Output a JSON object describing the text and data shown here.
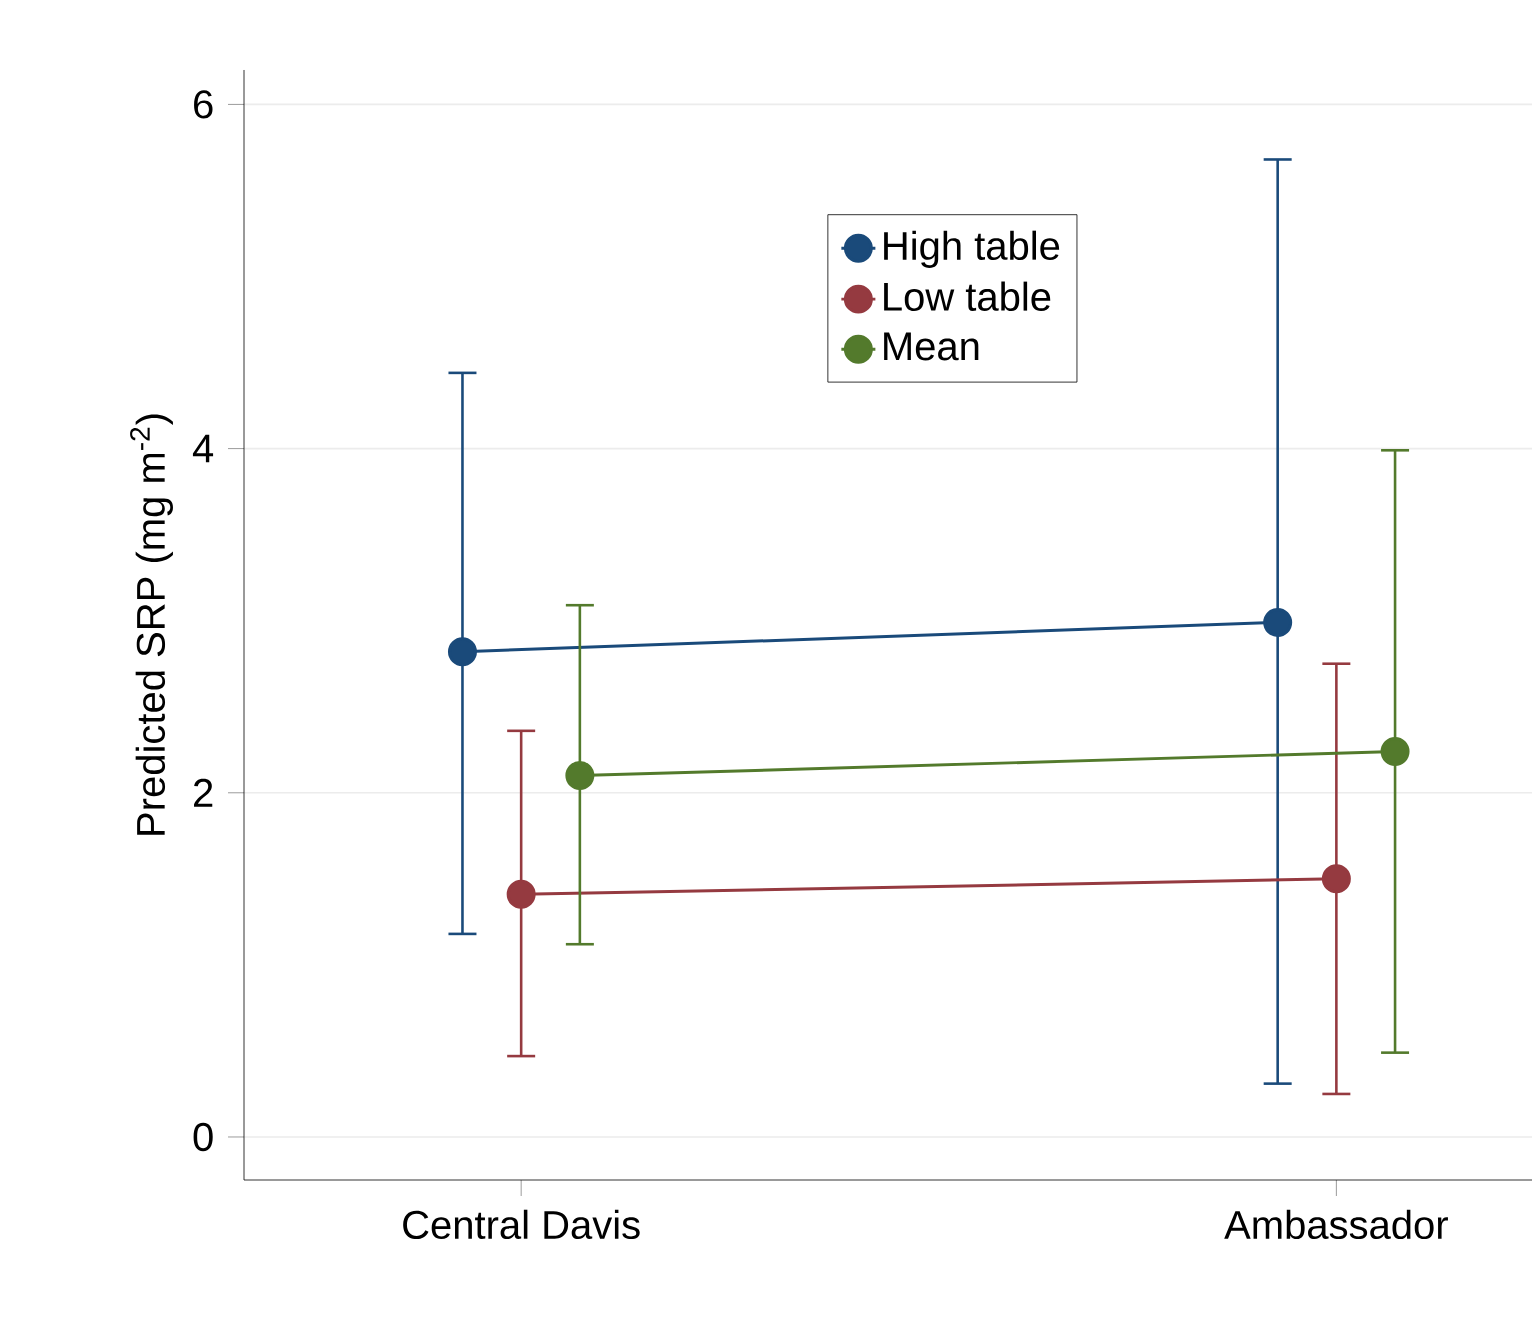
{
  "chart_data": {
    "type": "line",
    "ylabel": "Predicted SRP (mg m$^{-2}$)",
    "categories": [
      "Central Davis",
      "Ambassador"
    ],
    "series": [
      {
        "name": "High table",
        "color": "#1a4a7a",
        "values": [
          2.82,
          2.99
        ],
        "errors": [
          [
            1.18,
            4.44
          ],
          [
            0.31,
            5.68
          ]
        ]
      },
      {
        "name": "Low table",
        "color": "#953a40",
        "values": [
          1.41,
          1.5
        ],
        "errors": [
          [
            0.47,
            2.36
          ],
          [
            0.25,
            2.75
          ]
        ]
      },
      {
        "name": "Mean",
        "color": "#537a2c",
        "values": [
          2.1,
          2.24
        ],
        "errors": [
          [
            1.12,
            3.09
          ],
          [
            0.49,
            3.99
          ]
        ]
      }
    ],
    "ylim": [
      -0.25,
      6.2
    ],
    "yticks": [
      0,
      2,
      4,
      6
    ],
    "grid": "y",
    "legend": "top",
    "marker": "circle",
    "line_style": "solid"
  }
}
